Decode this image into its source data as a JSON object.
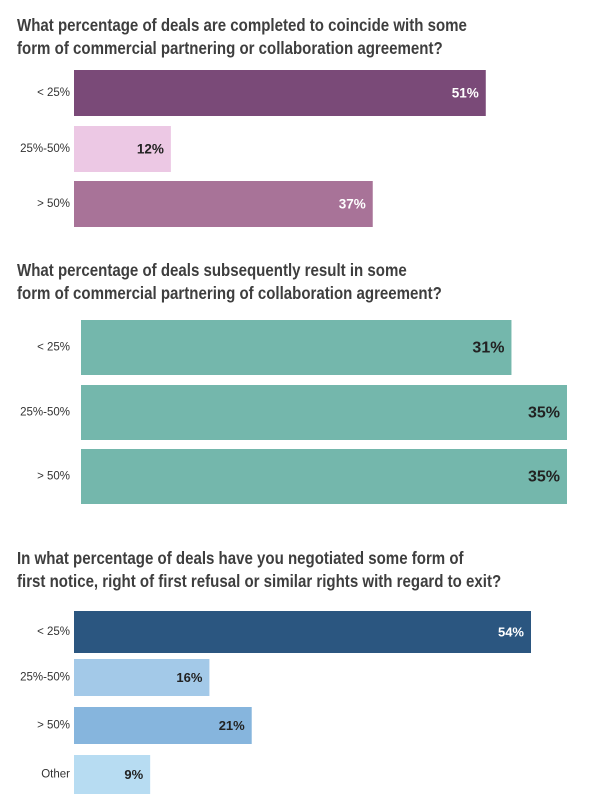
{
  "chart_data": [
    {
      "type": "bar",
      "orientation": "horizontal",
      "title_lines": [
        "What percentage of deals are completed to coincide with some",
        "form of commercial partnering or collaboration agreement?"
      ],
      "categories": [
        "< 25%",
        "25%-50%",
        "> 50%"
      ],
      "values": [
        51,
        12,
        37
      ],
      "labels": [
        "51%",
        "12%",
        "37%"
      ],
      "colors": [
        "#7a4a78",
        "#ecc8e4",
        "#a87398"
      ],
      "label_colors": [
        "#ffffff",
        "#222222",
        "#ffffff"
      ],
      "xlim": [
        0,
        54
      ],
      "grid": false
    },
    {
      "type": "bar",
      "orientation": "horizontal",
      "title_lines": [
        "What percentage of deals subsequently result in some",
        "form of commercial partnering of collaboration agreement?"
      ],
      "categories": [
        "< 25%",
        "25%-50%",
        "> 50%"
      ],
      "values": [
        31,
        35,
        35
      ],
      "labels": [
        "31%",
        "35%",
        "35%"
      ],
      "colors": [
        "#74b7ac",
        "#74b7ac",
        "#74b7ac"
      ],
      "label_colors": [
        "#222222",
        "#222222",
        "#222222"
      ],
      "xlim": [
        0,
        35
      ],
      "grid": false
    },
    {
      "type": "bar",
      "orientation": "horizontal",
      "title_lines": [
        "In what percentage of deals have you negotiated some form of",
        "first notice, right of first refusal or similar rights with regard to exit?"
      ],
      "categories": [
        "< 25%",
        "25%-50%",
        "> 50%",
        "Other"
      ],
      "values": [
        54,
        16,
        21,
        9
      ],
      "labels": [
        "54%",
        "16%",
        "21%",
        "9%"
      ],
      "colors": [
        "#2b5680",
        "#a3c9e8",
        "#86b5dd",
        "#b7dcf2"
      ],
      "label_colors": [
        "#ffffff",
        "#222222",
        "#222222",
        "#222222"
      ],
      "xlim": [
        0,
        54
      ],
      "grid": false
    }
  ]
}
